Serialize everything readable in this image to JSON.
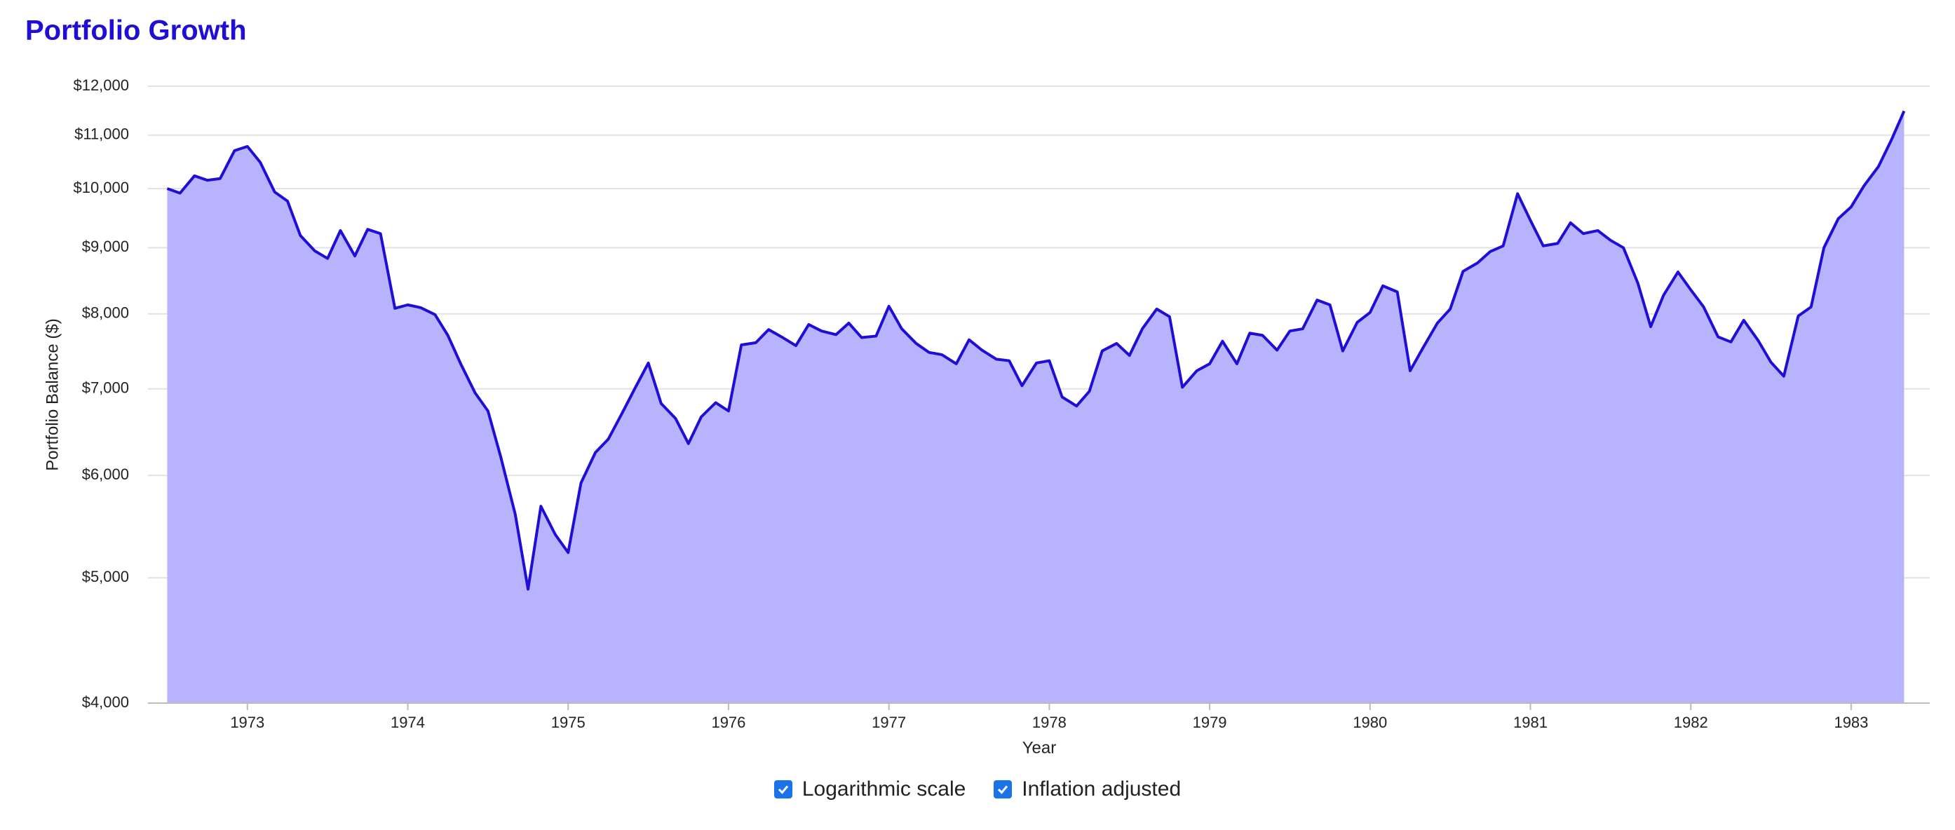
{
  "chart_data": {
    "type": "area",
    "title": "Portfolio Growth",
    "x_label": "Year",
    "y_label": "Portfolio Balance ($)",
    "log_scale": true,
    "grid": true,
    "line_color": "#1f0fd6",
    "fill_color": "#b8b3fd",
    "xlim": [
      1972.38,
      1983.49
    ],
    "xticks": [
      1973,
      1974,
      1975,
      1976,
      1977,
      1978,
      1979,
      1980,
      1981,
      1982,
      1983
    ],
    "ylim": [
      4000,
      12000
    ],
    "yticks": [
      {
        "value": 4000,
        "label": "$4,000"
      },
      {
        "value": 5000,
        "label": "$5,000"
      },
      {
        "value": 6000,
        "label": "$6,000"
      },
      {
        "value": 7000,
        "label": "$7,000"
      },
      {
        "value": 8000,
        "label": "$8,000"
      },
      {
        "value": 9000,
        "label": "$9,000"
      },
      {
        "value": 10000,
        "label": "$10,000"
      },
      {
        "value": 11000,
        "label": "$11,000"
      },
      {
        "value": 12000,
        "label": "$12,000"
      }
    ],
    "x": [
      1972.5,
      1972.58,
      1972.67,
      1972.75,
      1972.83,
      1972.92,
      1973,
      1973.08,
      1973.17,
      1973.25,
      1973.33,
      1973.42,
      1973.5,
      1973.58,
      1973.67,
      1973.75,
      1973.83,
      1973.92,
      1974,
      1974.08,
      1974.17,
      1974.25,
      1974.33,
      1974.42,
      1974.5,
      1974.58,
      1974.67,
      1974.75,
      1974.83,
      1974.92,
      1975,
      1975.08,
      1975.17,
      1975.25,
      1975.33,
      1975.42,
      1975.5,
      1975.58,
      1975.67,
      1975.75,
      1975.83,
      1975.92,
      1976,
      1976.08,
      1976.17,
      1976.25,
      1976.33,
      1976.42,
      1976.5,
      1976.58,
      1976.67,
      1976.75,
      1976.83,
      1976.92,
      1977,
      1977.08,
      1977.17,
      1977.25,
      1977.33,
      1977.42,
      1977.5,
      1977.58,
      1977.67,
      1977.75,
      1977.83,
      1977.92,
      1978,
      1978.08,
      1978.17,
      1978.25,
      1978.33,
      1978.42,
      1978.5,
      1978.58,
      1978.67,
      1978.75,
      1978.83,
      1978.92,
      1979,
      1979.08,
      1979.17,
      1979.25,
      1979.33,
      1979.42,
      1979.5,
      1979.58,
      1979.67,
      1979.75,
      1979.83,
      1979.92,
      1980,
      1980.08,
      1980.17,
      1980.25,
      1980.33,
      1980.42,
      1980.5,
      1980.58,
      1980.67,
      1980.75,
      1980.83,
      1980.92,
      1981,
      1981.08,
      1981.17,
      1981.25,
      1981.33,
      1981.42,
      1981.5,
      1981.58,
      1981.67,
      1981.75,
      1981.83,
      1981.92,
      1982,
      1982.08,
      1982.17,
      1982.25,
      1982.33,
      1982.42,
      1982.5,
      1982.58,
      1982.67,
      1982.75,
      1982.83,
      1982.92,
      1983,
      1983.08,
      1983.17,
      1983.25,
      1983.33
    ],
    "values": [
      10000,
      9920,
      10230,
      10150,
      10180,
      10700,
      10780,
      10480,
      9940,
      9780,
      9200,
      8950,
      8830,
      9280,
      8870,
      9300,
      9230,
      8080,
      8130,
      8090,
      7990,
      7700,
      7320,
      6950,
      6730,
      6200,
      5600,
      4900,
      5680,
      5400,
      5230,
      5920,
      6250,
      6400,
      6680,
      7020,
      7330,
      6820,
      6640,
      6350,
      6660,
      6830,
      6730,
      7570,
      7600,
      7780,
      7680,
      7560,
      7850,
      7760,
      7710,
      7870,
      7670,
      7690,
      8110,
      7790,
      7590,
      7470,
      7440,
      7320,
      7640,
      7500,
      7380,
      7360,
      7040,
      7330,
      7360,
      6900,
      6790,
      6970,
      7490,
      7590,
      7430,
      7790,
      8070,
      7960,
      7020,
      7230,
      7320,
      7620,
      7320,
      7730,
      7700,
      7500,
      7760,
      7790,
      8200,
      8130,
      7490,
      7880,
      8020,
      8410,
      8320,
      7230,
      7530,
      7870,
      8070,
      8630,
      8760,
      8940,
      9030,
      9910,
      9450,
      9030,
      9070,
      9410,
      9230,
      9280,
      9120,
      9000,
      8450,
      7820,
      8270,
      8620,
      8350,
      8100,
      7680,
      7610,
      7910,
      7630,
      7340,
      7160,
      7970,
      8100,
      9000,
      9480,
      9680,
      10050,
      10400,
      10900,
      11480
    ]
  },
  "controls": [
    {
      "label": "Logarithmic scale",
      "checked": true
    },
    {
      "label": "Inflation adjusted",
      "checked": true
    }
  ]
}
